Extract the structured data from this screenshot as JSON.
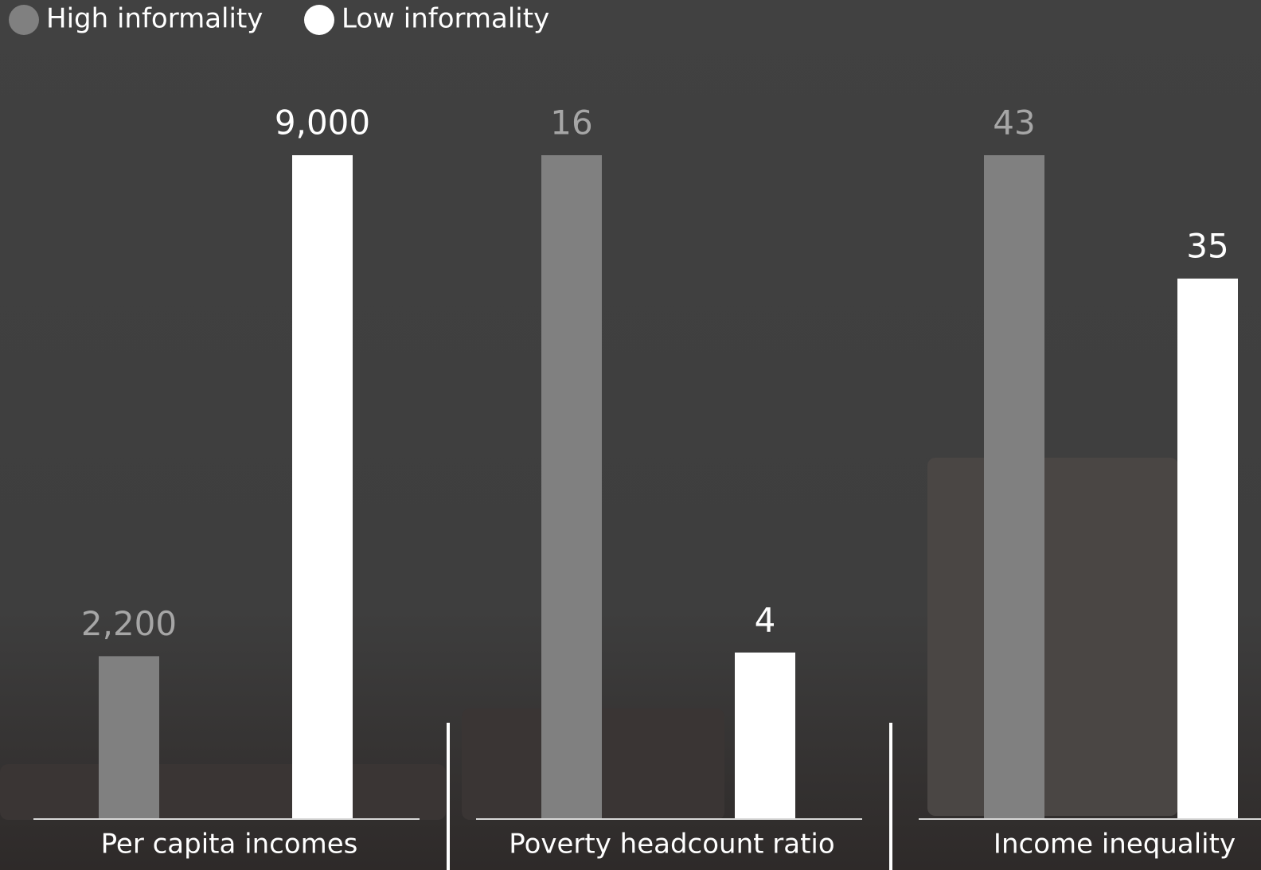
{
  "chart_data": {
    "type": "bar",
    "categories": [
      "Per capita incomes",
      "Poverty headcount ratio",
      "Income inequality"
    ],
    "series": [
      {
        "name": "High informality",
        "color": "#808080",
        "values": [
          2200,
          16,
          43
        ],
        "value_labels": [
          "2,200",
          "16",
          "43"
        ]
      },
      {
        "name": "Low informality",
        "color": "#ffffff",
        "values": [
          9000,
          4,
          35
        ],
        "value_labels": [
          "9,000",
          "4",
          "35"
        ]
      }
    ],
    "ylims": [
      [
        0,
        9000
      ],
      [
        0,
        16
      ],
      [
        0,
        43
      ]
    ],
    "legend": "top-left"
  }
}
